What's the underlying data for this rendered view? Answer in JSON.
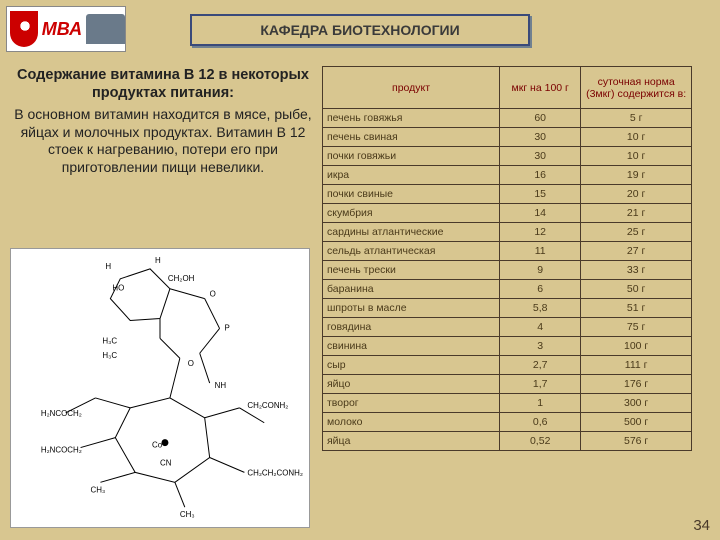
{
  "logo_text": "МВА",
  "header": "КАФЕДРА БИОТЕХНОЛОГИИ",
  "left_title": "Содержание витамина В 12 в некоторых продуктах питания:",
  "left_body": "В основном витамин находится в мясе, рыбе, яйцах и молочных продуктах. Витамин В 12 стоек к нагреванию, потери его при приготовлении пищи невелики.",
  "table": {
    "headers": [
      "продукт",
      "мкг на 100 г",
      "суточная норма (3мкг) содержится в:"
    ],
    "rows": [
      [
        "печень говяжья",
        "60",
        "5 г"
      ],
      [
        "печень свиная",
        "30",
        "10 г"
      ],
      [
        "почки говяжьи",
        "30",
        "10 г"
      ],
      [
        "икра",
        "16",
        "19 г"
      ],
      [
        "почки свиные",
        "15",
        "20 г"
      ],
      [
        "скумбрия",
        "14",
        "21 г"
      ],
      [
        "сардины атлантические",
        "12",
        "25 г"
      ],
      [
        "сельдь атлантическая",
        "11",
        "27 г"
      ],
      [
        "печень трески",
        "9",
        "33 г"
      ],
      [
        "баранина",
        "6",
        "50 г"
      ],
      [
        "шпроты в масле",
        "5,8",
        "51 г"
      ],
      [
        "говядина",
        "4",
        "75 г"
      ],
      [
        "свинина",
        "3",
        "100 г"
      ],
      [
        "сыр",
        "2,7",
        "111 г"
      ],
      [
        "яйцо",
        "1,7",
        "176 г"
      ],
      [
        "творог",
        "1",
        "300 г"
      ],
      [
        "молоко",
        "0,6",
        "500 г"
      ],
      [
        "яйца",
        "0,52",
        "576 г"
      ]
    ]
  },
  "slide_number": "34"
}
